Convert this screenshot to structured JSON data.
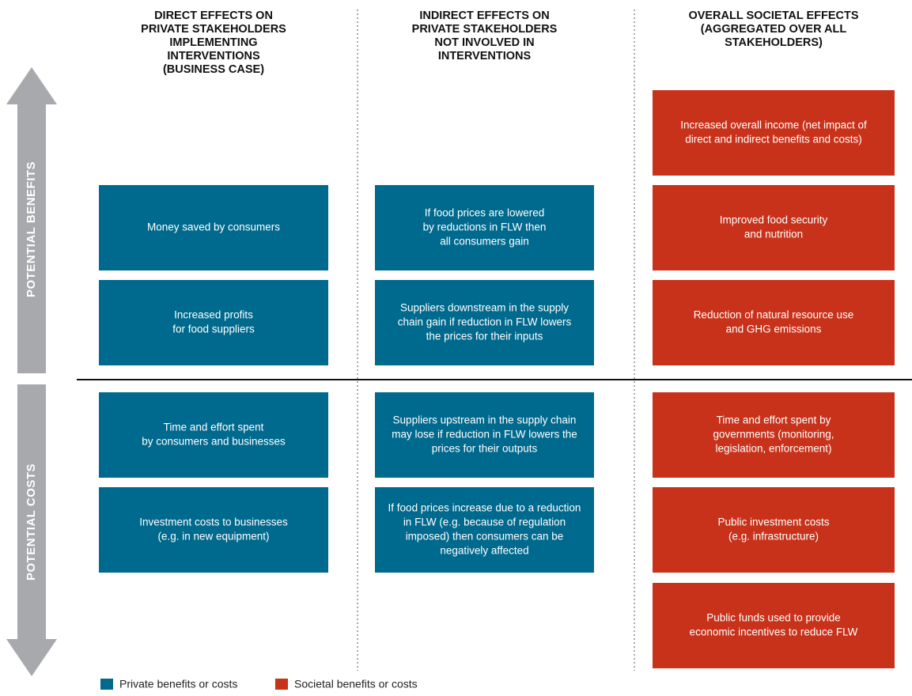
{
  "side_labels": [
    "POTENTIAL BENEFITS",
    "POTENTIAL COSTS"
  ],
  "columns": [
    {
      "header": [
        "DIRECT EFFECTS ON",
        "PRIVATE STAKEHOLDERS",
        "IMPLEMENTING",
        "INTERVENTIONS",
        "(BUSINESS CASE)"
      ],
      "boxes": [
        {
          "lines": [
            "Money saved by consumers"
          ]
        },
        {
          "lines": [
            "Increased profits",
            "for food suppliers"
          ]
        },
        {
          "lines": [
            "Time and effort spent",
            "by consumers and businesses"
          ]
        },
        {
          "lines": [
            "Investment costs to businesses",
            "(e.g. in new equipment)"
          ]
        }
      ]
    },
    {
      "header": [
        "INDIRECT EFFECTS ON",
        "PRIVATE STAKEHOLDERS",
        "NOT INVOLVED IN",
        "INTERVENTIONS"
      ],
      "boxes": [
        {
          "lines": [
            "If food prices are lowered",
            "by reductions in FLW then",
            "all consumers gain"
          ]
        },
        {
          "lines": [
            "Suppliers downstream in the supply",
            "chain gain if reduction in FLW lowers",
            "the prices for their inputs"
          ]
        },
        {
          "lines": [
            "Suppliers upstream in the supply chain",
            "may lose if reduction in FLW lowers the",
            "prices for their outputs"
          ]
        },
        {
          "lines": [
            "If food prices increase due to a reduction",
            "in FLW (e.g. because of regulation",
            "imposed) then consumers can be",
            "negatively affected"
          ]
        }
      ]
    },
    {
      "header": [
        "OVERALL SOCIETAL EFFECTS",
        "(AGGREGATED OVER ALL",
        "STAKEHOLDERS)"
      ],
      "boxes": [
        {
          "lines": [
            "Increased overall income (net impact of",
            "direct and indirect benefits and costs)"
          ]
        },
        {
          "lines": [
            "Improved food security",
            "and nutrition"
          ]
        },
        {
          "lines": [
            "Reduction of natural resource use",
            "and GHG emissions"
          ]
        },
        {
          "lines": [
            "Time and effort spent by",
            "governments (monitoring,",
            "legislation, enforcement)"
          ]
        },
        {
          "lines": [
            "Public investment costs",
            "(e.g. infrastructure)"
          ]
        },
        {
          "lines": [
            "Public funds used to provide",
            "economic incentives to reduce FLW"
          ]
        }
      ]
    }
  ],
  "legend": [
    {
      "label": "Private benefits or costs",
      "color": "#006a8e"
    },
    {
      "label": "Societal benefits or costs",
      "color": "#c8321a"
    }
  ]
}
